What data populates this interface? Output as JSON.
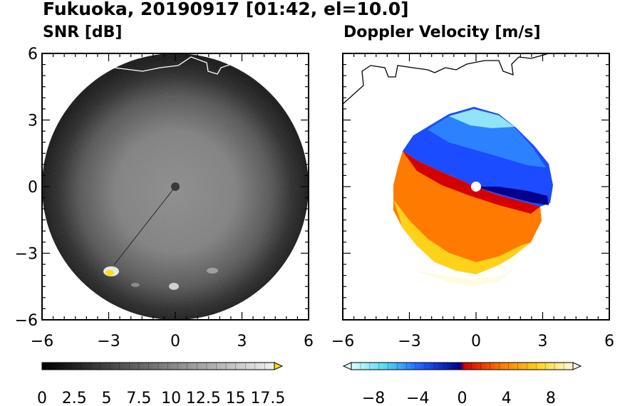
{
  "title": "Fukuoka, 20190917 [01:42, el=10.0]",
  "panels": [
    {
      "id": "snr",
      "subtitle": "SNR [dB]"
    },
    {
      "id": "doppler",
      "subtitle": "Doppler Velocity [m/s]"
    }
  ],
  "chart_data": [
    {
      "type": "heatmap",
      "title": "SNR [dB]",
      "projection": "polar radar sweep (PPI)",
      "xlim": [
        -6,
        6
      ],
      "ylim": [
        -6,
        6
      ],
      "xticks": [
        "−6",
        "−3",
        "0",
        "3",
        "6"
      ],
      "yticks": [
        "6",
        "3",
        "0",
        "−3",
        "−6"
      ],
      "grid": false,
      "colormap": "grayscale black-to-white with yellow overflow",
      "colorbar": {
        "range": [
          0,
          18
        ],
        "extend": "max",
        "tick_labels": [
          "0",
          "2.5",
          "5",
          "7.5",
          "10",
          "12.5",
          "15",
          "17.5"
        ],
        "tick_values": [
          0,
          2.5,
          5,
          7.5,
          10,
          12.5,
          15,
          17.5
        ]
      },
      "colors": {
        "low": "#000000",
        "high": "#f2f2f2",
        "over": "#ffe000",
        "coast": "#ffffff"
      }
    },
    {
      "type": "heatmap",
      "title": "Doppler Velocity [m/s]",
      "projection": "polar radar sweep (PPI)",
      "xlim": [
        -6,
        6
      ],
      "ylim": [
        -6,
        6
      ],
      "xticks": [
        "−6",
        "−3",
        "0",
        "3",
        "6"
      ],
      "yticks": [],
      "grid": false,
      "colormap": "diverging blue-white-red (negative toward radar)",
      "colorbar": {
        "range": [
          -10,
          10
        ],
        "extend": "both",
        "tick_labels": [
          "−8",
          "−4",
          "0",
          "4",
          "8"
        ],
        "tick_values": [
          -8,
          -4,
          0,
          4,
          8
        ]
      },
      "colors": {
        "neg_max": "#e6ffff",
        "neg_mid": "#1b5cff",
        "neg_min": "#00008b",
        "pos_min": "#cc0000",
        "pos_mid": "#ff8c00",
        "pos_max": "#fffde6",
        "coast": "#000000"
      }
    }
  ]
}
